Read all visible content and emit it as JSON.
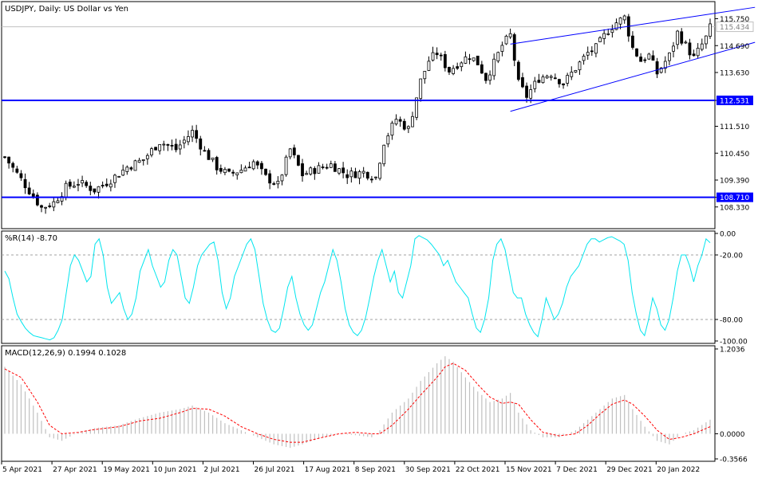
{
  "window_title": "USDJPY, Daily:  US Dollar vs Yen",
  "colors": {
    "background": "#ffffff",
    "frame": "#000000",
    "candles": "#000000",
    "support_lines": "#0000ff",
    "channel_lines": "#0000ff",
    "wpr_line": "#00e5ee",
    "macd_hist": "#c0c0c0",
    "macd_signal": "#ff0000",
    "price_grid": "#c0c0c0",
    "level_dashed": "#a0a0a0"
  },
  "chart_data": [
    {
      "name": "price",
      "type": "candlestick",
      "ylim": [
        107.6,
        116.3
      ],
      "yticks": [
        "115.750",
        "114.690",
        "113.630",
        "112.531",
        "111.510",
        "110.450",
        "109.390",
        "108.710",
        "108.330"
      ],
      "ytick_values": [
        115.75,
        114.69,
        113.63,
        112.531,
        111.51,
        110.45,
        109.39,
        108.71,
        108.33
      ],
      "current_price_label": "115.434",
      "current_price": 115.434,
      "horizontal_levels": [
        {
          "label": "112.531",
          "value": 112.531
        },
        {
          "label": "108.710",
          "value": 108.71
        }
      ],
      "channel": {
        "upper": {
          "x": [
            124,
            184
          ],
          "y": [
            114.75,
            116.2
          ]
        },
        "lower": {
          "x": [
            124,
            184
          ],
          "y": [
            112.1,
            114.82
          ]
        }
      },
      "keypoints": [
        [
          0,
          110.3
        ],
        [
          5,
          109.2
        ],
        [
          9,
          108.3
        ],
        [
          12,
          108.5
        ],
        [
          15,
          109.1
        ],
        [
          18,
          109.3
        ],
        [
          22,
          109.0
        ],
        [
          26,
          109.4
        ],
        [
          30,
          109.9
        ],
        [
          34,
          110.2
        ],
        [
          38,
          110.9
        ],
        [
          42,
          110.6
        ],
        [
          46,
          111.3
        ],
        [
          49,
          110.5
        ],
        [
          52,
          109.9
        ],
        [
          55,
          109.6
        ],
        [
          58,
          109.8
        ],
        [
          61,
          110.1
        ],
        [
          64,
          109.5
        ],
        [
          67,
          109.2
        ],
        [
          70,
          110.6
        ],
        [
          73,
          109.6
        ],
        [
          76,
          109.8
        ],
        [
          80,
          110.0
        ],
        [
          84,
          109.6
        ],
        [
          88,
          109.7
        ],
        [
          91,
          109.5
        ],
        [
          93,
          110.9
        ],
        [
          96,
          111.8
        ],
        [
          99,
          111.4
        ],
        [
          102,
          113.3
        ],
        [
          104,
          114.1
        ],
        [
          106,
          114.4
        ],
        [
          109,
          113.7
        ],
        [
          112,
          114.1
        ],
        [
          114,
          114.3
        ],
        [
          116,
          114.0
        ],
        [
          118,
          113.4
        ],
        [
          120,
          114.0
        ],
        [
          122,
          114.7
        ],
        [
          124,
          115.1
        ],
        [
          126,
          113.2
        ],
        [
          128,
          112.7
        ],
        [
          131,
          113.4
        ],
        [
          134,
          113.6
        ],
        [
          137,
          113.2
        ],
        [
          140,
          113.8
        ],
        [
          143,
          114.4
        ],
        [
          145,
          114.6
        ],
        [
          148,
          115.3
        ],
        [
          150,
          115.6
        ],
        [
          152,
          115.8
        ],
        [
          154,
          114.6
        ],
        [
          156,
          114.1
        ],
        [
          158,
          114.3
        ],
        [
          160,
          113.6
        ],
        [
          163,
          114.3
        ],
        [
          165,
          115.2
        ],
        [
          167,
          114.7
        ],
        [
          169,
          114.2
        ],
        [
          172,
          115.0
        ],
        [
          173,
          115.4
        ]
      ]
    },
    {
      "name": "wpr",
      "type": "line",
      "label": "%R(14) -8.70",
      "ylim": [
        -100,
        0
      ],
      "yticks": [
        "0.00",
        "-20.00",
        "-80.00",
        "-100.00"
      ],
      "ytick_values": [
        0,
        -20,
        -80,
        -100
      ],
      "levels": [
        -20,
        -80
      ],
      "values": [
        -35,
        -42,
        -60,
        -75,
        -82,
        -88,
        -92,
        -95,
        -96,
        -97,
        -98,
        -99,
        -97,
        -90,
        -80,
        -55,
        -30,
        -20,
        -25,
        -35,
        -45,
        -40,
        -10,
        -5,
        -20,
        -50,
        -65,
        -60,
        -55,
        -70,
        -80,
        -75,
        -60,
        -35,
        -25,
        -15,
        -30,
        -40,
        -50,
        -45,
        -25,
        -15,
        -20,
        -40,
        -60,
        -65,
        -50,
        -30,
        -20,
        -15,
        -10,
        -8,
        -25,
        -55,
        -70,
        -60,
        -40,
        -30,
        -20,
        -10,
        -5,
        -15,
        -40,
        -65,
        -80,
        -90,
        -92,
        -88,
        -70,
        -50,
        -40,
        -60,
        -75,
        -85,
        -90,
        -85,
        -70,
        -55,
        -45,
        -30,
        -15,
        -25,
        -45,
        -70,
        -85,
        -92,
        -95,
        -90,
        -78,
        -60,
        -40,
        -25,
        -15,
        -30,
        -45,
        -35,
        -55,
        -60,
        -45,
        -30,
        -5,
        -2,
        -4,
        -6,
        -10,
        -15,
        -20,
        -30,
        -25,
        -35,
        -45,
        -50,
        -55,
        -60,
        -75,
        -88,
        -92,
        -80,
        -60,
        -25,
        -10,
        -5,
        -15,
        -35,
        -55,
        -60,
        -60,
        -75,
        -85,
        -92,
        -96,
        -80,
        -60,
        -70,
        -80,
        -75,
        -65,
        -50,
        -40,
        -35,
        -30,
        -20,
        -10,
        -5,
        -5,
        -8,
        -6,
        -4,
        -3,
        -5,
        -7,
        -10,
        -25,
        -55,
        -75,
        -90,
        -95,
        -80,
        -60,
        -70,
        -85,
        -90,
        -80,
        -60,
        -35,
        -20,
        -20,
        -30,
        -45,
        -30,
        -20,
        -5,
        -8.7
      ]
    },
    {
      "name": "macd",
      "type": "histogram+line",
      "label": "MACD(12,26,9)  0.1994  0.1028",
      "ylim": [
        -0.3566,
        1.2036
      ],
      "yticks": [
        "1.2036",
        "0.0000",
        "-0.3566"
      ],
      "ytick_values": [
        1.2036,
        0.0,
        -0.3566
      ],
      "hist_keypoints": [
        [
          0,
          0.95
        ],
        [
          4,
          0.7
        ],
        [
          8,
          0.3
        ],
        [
          11,
          -0.05
        ],
        [
          14,
          -0.1
        ],
        [
          18,
          0.02
        ],
        [
          22,
          0.08
        ],
        [
          28,
          0.12
        ],
        [
          33,
          0.22
        ],
        [
          38,
          0.3
        ],
        [
          43,
          0.35
        ],
        [
          46,
          0.4
        ],
        [
          50,
          0.3
        ],
        [
          54,
          0.15
        ],
        [
          58,
          0.05
        ],
        [
          62,
          -0.05
        ],
        [
          66,
          -0.15
        ],
        [
          70,
          -0.2
        ],
        [
          73,
          -0.15
        ],
        [
          78,
          -0.05
        ],
        [
          82,
          0.0
        ],
        [
          86,
          -0.02
        ],
        [
          90,
          -0.05
        ],
        [
          92,
          0.05
        ],
        [
          95,
          0.3
        ],
        [
          99,
          0.5
        ],
        [
          102,
          0.75
        ],
        [
          106,
          1.0
        ],
        [
          108,
          1.1
        ],
        [
          110,
          1.02
        ],
        [
          113,
          0.8
        ],
        [
          116,
          0.6
        ],
        [
          119,
          0.45
        ],
        [
          122,
          0.5
        ],
        [
          124,
          0.58
        ],
        [
          126,
          0.3
        ],
        [
          129,
          0.05
        ],
        [
          132,
          -0.05
        ],
        [
          136,
          -0.05
        ],
        [
          140,
          0.05
        ],
        [
          143,
          0.2
        ],
        [
          146,
          0.35
        ],
        [
          149,
          0.5
        ],
        [
          152,
          0.55
        ],
        [
          154,
          0.35
        ],
        [
          157,
          0.1
        ],
        [
          160,
          -0.1
        ],
        [
          163,
          -0.15
        ],
        [
          166,
          0.0
        ],
        [
          169,
          0.05
        ],
        [
          173,
          0.2
        ]
      ],
      "signal_keypoints": [
        [
          0,
          0.92
        ],
        [
          4,
          0.8
        ],
        [
          8,
          0.45
        ],
        [
          11,
          0.12
        ],
        [
          14,
          0.0
        ],
        [
          18,
          0.02
        ],
        [
          22,
          0.06
        ],
        [
          28,
          0.1
        ],
        [
          33,
          0.18
        ],
        [
          38,
          0.22
        ],
        [
          43,
          0.3
        ],
        [
          46,
          0.36
        ],
        [
          50,
          0.35
        ],
        [
          54,
          0.25
        ],
        [
          58,
          0.1
        ],
        [
          62,
          0.0
        ],
        [
          66,
          -0.08
        ],
        [
          70,
          -0.12
        ],
        [
          73,
          -0.12
        ],
        [
          78,
          -0.05
        ],
        [
          82,
          0.0
        ],
        [
          86,
          0.02
        ],
        [
          90,
          0.0
        ],
        [
          92,
          0.0
        ],
        [
          95,
          0.12
        ],
        [
          99,
          0.35
        ],
        [
          102,
          0.55
        ],
        [
          106,
          0.8
        ],
        [
          108,
          0.95
        ],
        [
          110,
          1.0
        ],
        [
          113,
          0.9
        ],
        [
          116,
          0.7
        ],
        [
          119,
          0.52
        ],
        [
          122,
          0.43
        ],
        [
          124,
          0.45
        ],
        [
          126,
          0.42
        ],
        [
          129,
          0.2
        ],
        [
          132,
          0.02
        ],
        [
          136,
          -0.03
        ],
        [
          140,
          0.0
        ],
        [
          143,
          0.12
        ],
        [
          146,
          0.28
        ],
        [
          149,
          0.42
        ],
        [
          152,
          0.48
        ],
        [
          154,
          0.42
        ],
        [
          157,
          0.25
        ],
        [
          160,
          0.05
        ],
        [
          163,
          -0.08
        ],
        [
          166,
          -0.05
        ],
        [
          169,
          0.0
        ],
        [
          173,
          0.1
        ]
      ]
    }
  ],
  "x_axis": {
    "bar_count": 174,
    "labels": [
      {
        "bar": 0,
        "text": "5 Apr 2021"
      },
      {
        "bar": 16,
        "text": "27 Apr 2021"
      },
      {
        "bar": 32,
        "text": "19 May 2021"
      },
      {
        "bar": 48,
        "text": "10 Jun 2021"
      },
      {
        "bar": 64,
        "text": "2 Jul 2021"
      },
      {
        "bar": 80,
        "text": "26 Jul 2021"
      },
      {
        "bar": 96,
        "text": "17 Aug 2021"
      },
      {
        "bar": 112,
        "text": "8 Sep 2021"
      },
      {
        "bar": 128,
        "text": "30 Sep 2021"
      },
      {
        "bar": 144,
        "text": "22 Oct 2021"
      },
      {
        "bar": 160,
        "text": "15 Nov 2021"
      },
      {
        "bar": 176,
        "text": "7 Dec 2021"
      },
      {
        "bar": 192,
        "text": "29 Dec 2021"
      },
      {
        "bar": 208,
        "text": "20 Jan 2022"
      }
    ]
  }
}
